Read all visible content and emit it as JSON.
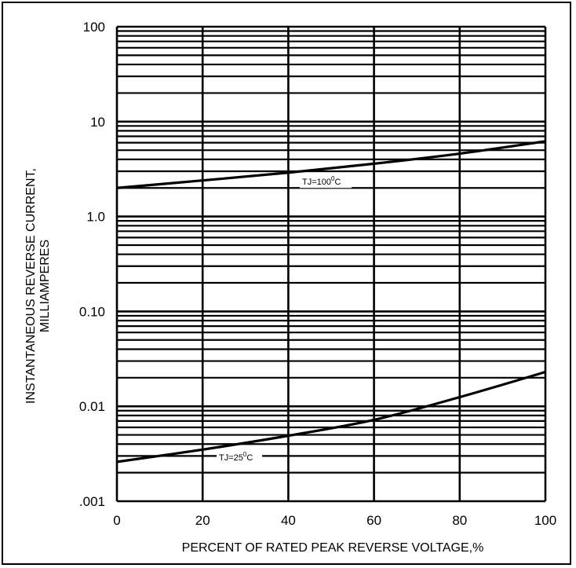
{
  "chart_data": {
    "type": "line",
    "xlabel": "PERCENT OF RATED PEAK REVERSE VOLTAGE,%",
    "ylabel": [
      "INSTANTANEOUS REVERSE CURRENT,",
      "MILLIAMPERES"
    ],
    "x_ticks": [
      "0",
      "20",
      "40",
      "60",
      "80",
      "100"
    ],
    "x_tick_values": [
      0,
      20,
      40,
      60,
      80,
      100
    ],
    "y_ticks": [
      ".001",
      "0.01",
      "0.10",
      "1.0",
      "10",
      "100"
    ],
    "y_tick_values": [
      0.001,
      0.01,
      0.1,
      1,
      10,
      100
    ],
    "xlim": [
      0,
      100
    ],
    "ylim": [
      0.001,
      100
    ],
    "y_scale": "log",
    "grid": true,
    "series": [
      {
        "name": "TJ=100°C",
        "label_parts": {
          "prefix": "TJ=100",
          "sup": "0",
          "suffix": "C"
        },
        "x": [
          0,
          20,
          40,
          60,
          80,
          100
        ],
        "y": [
          2.0,
          2.4,
          2.9,
          3.6,
          4.6,
          6.2
        ]
      },
      {
        "name": "TJ=25°C",
        "label_parts": {
          "prefix": "TJ=25",
          "sup": "0",
          "suffix": "C"
        },
        "x": [
          0,
          20,
          40,
          60,
          80,
          100
        ],
        "y": [
          0.0026,
          0.0035,
          0.0049,
          0.0072,
          0.0125,
          0.023
        ]
      }
    ]
  }
}
